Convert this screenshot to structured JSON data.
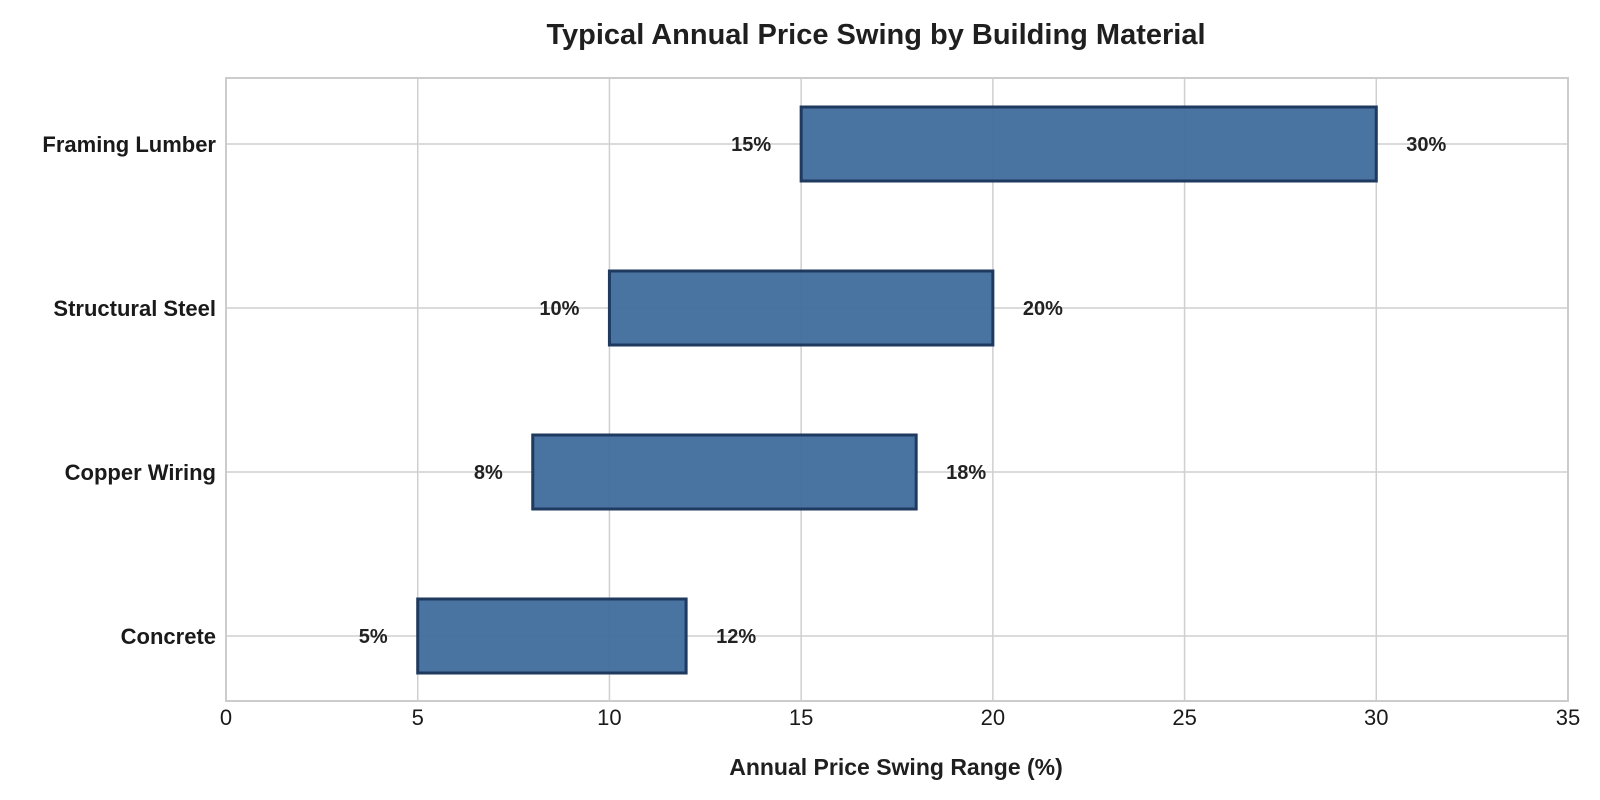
{
  "chart_data": {
    "type": "bar",
    "orientation": "horizontal",
    "title": "Typical Annual Price Swing by Building Material",
    "xlabel": "Annual Price Swing Range (%)",
    "ylabel": "",
    "xlim": [
      0,
      35
    ],
    "xticks": [
      "0",
      "5",
      "10",
      "15",
      "20",
      "25",
      "30",
      "35"
    ],
    "grid": true,
    "categories": [
      "Framing Lumber",
      "Structural Steel",
      "Copper Wiring",
      "Concrete"
    ],
    "ranges": [
      {
        "category": "Framing Lumber",
        "low": 15,
        "high": 30,
        "low_label": "15%",
        "high_label": "30%"
      },
      {
        "category": "Structural Steel",
        "low": 10,
        "high": 20,
        "low_label": "10%",
        "high_label": "20%"
      },
      {
        "category": "Copper Wiring",
        "low": 8,
        "high": 18,
        "low_label": "8%",
        "high_label": "18%"
      },
      {
        "category": "Concrete",
        "low": 5,
        "high": 12,
        "low_label": "5%",
        "high_label": "12%"
      }
    ],
    "colors": {
      "bar_fill": "#3f6b9c",
      "bar_edge": "#1f3a5f"
    }
  }
}
